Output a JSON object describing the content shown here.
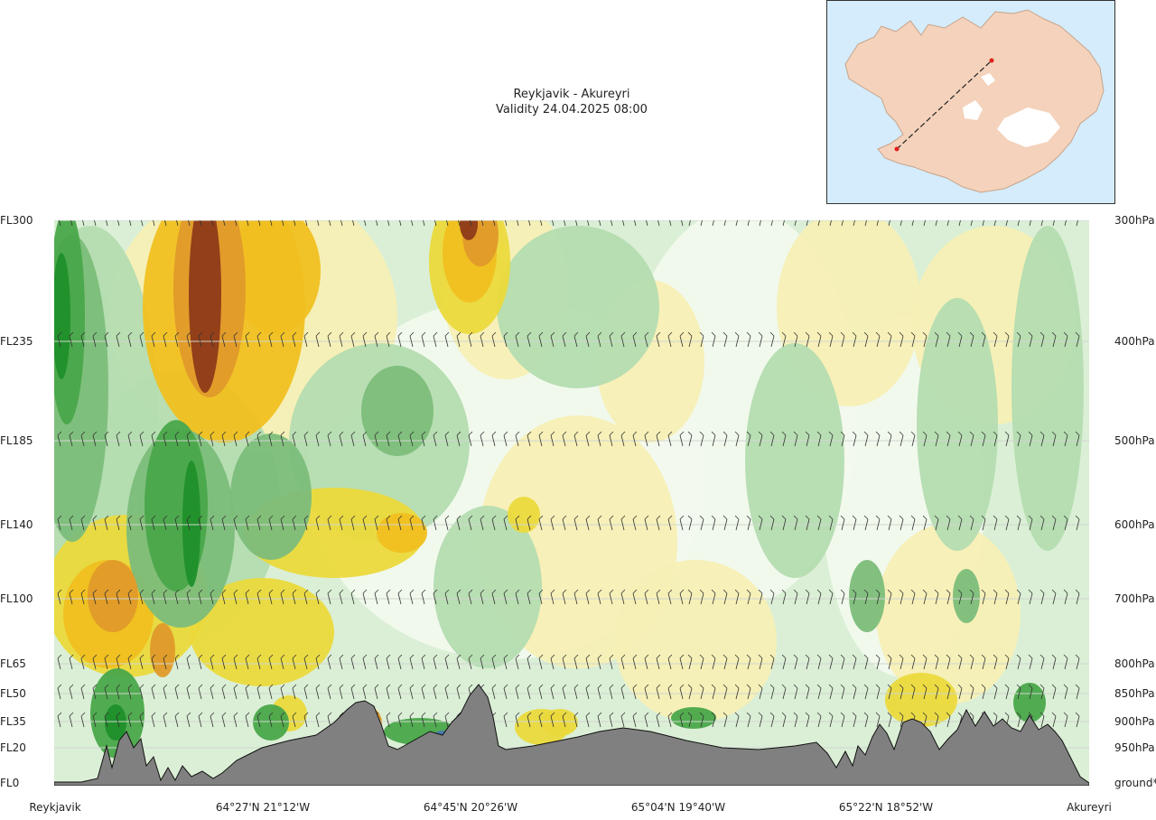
{
  "title": {
    "route": "Reykjavik - Akureyri",
    "validity": "Validity 24.04.2025 08:00"
  },
  "map": {
    "land_color": "#f4d2bb",
    "sea_color": "#d4ecfb",
    "ice_color": "#ffffff",
    "route_color": "#222222",
    "endpoint_color": "#e0201c"
  },
  "colors": {
    "strong_green": "#1f8f2a",
    "green": "#4aa64a",
    "mid_green": "#7cbd7a",
    "light_green": "#b4dcb0",
    "pale_green": "#d7eed4",
    "near_white": "#f2f9ee",
    "pale_yellow": "#f7efb5",
    "yellow": "#ebd93c",
    "gold": "#f0c020",
    "orange": "#e09a2a",
    "brown": "#8e3a18",
    "blue": "#4a79b3",
    "terrain": "#808080"
  },
  "chart_data": {
    "type": "cross-section",
    "levels_left": [
      "FL300",
      "FL235",
      "FL185",
      "FL140",
      "FL100",
      "FL65",
      "FL50",
      "FL35",
      "FL20",
      "FL0"
    ],
    "levels_right": [
      "300hPa",
      "400hPa",
      "500hPa",
      "600hPa",
      "700hPa",
      "800hPa",
      "850hPa",
      "900hPa",
      "950hPa",
      "ground*"
    ],
    "positions": [
      "Reykjavik",
      "64°27'N 21°12'W",
      "64°45'N 20°26'W",
      "65°04'N 19°40'W",
      "65°22'N 18°52'W",
      "Akureyri"
    ],
    "grid": true
  }
}
